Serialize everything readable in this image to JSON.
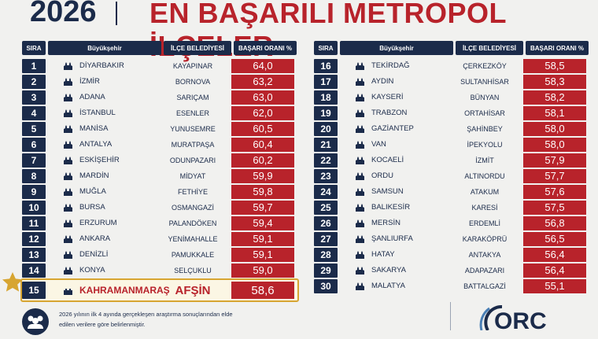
{
  "header": {
    "year": "2026",
    "title": "EN BAŞARILI METROPOL İLÇELER"
  },
  "columns": {
    "rank": "SIRA",
    "city": "Büyükşehir",
    "district": "İLÇE BELEDİYESİ",
    "score": "BAŞARI ORANI %"
  },
  "columns_right": {
    "rank": "SIRA",
    "city": "Büyükşehir",
    "district": "İLÇE BELEDİYESİ",
    "score": "BAŞARI ORANI %"
  },
  "left_rows": [
    {
      "rank": "1",
      "city": "DİYARBAKIR",
      "district": "KAYAPINAR",
      "score": "64,0"
    },
    {
      "rank": "2",
      "city": "İZMİR",
      "district": "BORNOVA",
      "score": "63,2"
    },
    {
      "rank": "3",
      "city": "ADANA",
      "district": "SARIÇAM",
      "score": "63,0"
    },
    {
      "rank": "4",
      "city": "İSTANBUL",
      "district": "ESENLER",
      "score": "62,0"
    },
    {
      "rank": "5",
      "city": "MANİSA",
      "district": "YUNUSEMRE",
      "score": "60,5"
    },
    {
      "rank": "6",
      "city": "ANTALYA",
      "district": "MURATPAŞA",
      "score": "60,4"
    },
    {
      "rank": "7",
      "city": "ESKİŞEHİR",
      "district": "ODUNPAZARI",
      "score": "60,2"
    },
    {
      "rank": "8",
      "city": "MARDİN",
      "district": "MİDYAT",
      "score": "59,9"
    },
    {
      "rank": "9",
      "city": "MUĞLA",
      "district": "FETHİYE",
      "score": "59,8"
    },
    {
      "rank": "10",
      "city": "BURSA",
      "district": "OSMANGAZİ",
      "score": "59,7"
    },
    {
      "rank": "11",
      "city": "ERZURUM",
      "district": "PALANDÖKEN",
      "score": "59,4"
    },
    {
      "rank": "12",
      "city": "ANKARA",
      "district": "YENİMAHALLE",
      "score": "59,1"
    },
    {
      "rank": "13",
      "city": "DENİZLİ",
      "district": "PAMUKKALE",
      "score": "59,1"
    },
    {
      "rank": "14",
      "city": "KONYA",
      "district": "SELÇUKLU",
      "score": "59,0"
    }
  ],
  "highlight": {
    "rank": "15",
    "city": "KAHRAMANMARAŞ",
    "district": "AFŞİN",
    "score": "58,6"
  },
  "right_rows": [
    {
      "rank": "16",
      "city": "TEKİRDAĞ",
      "district": "ÇERKEZKÖY",
      "score": "58,5"
    },
    {
      "rank": "17",
      "city": "AYDIN",
      "district": "SULTANHİSAR",
      "score": "58,3"
    },
    {
      "rank": "18",
      "city": "KAYSERİ",
      "district": "BÜNYAN",
      "score": "58,2"
    },
    {
      "rank": "19",
      "city": "TRABZON",
      "district": "ORTAHİSAR",
      "score": "58,1"
    },
    {
      "rank": "20",
      "city": "GAZİANTEP",
      "district": "ŞAHİNBEY",
      "score": "58,0"
    },
    {
      "rank": "21",
      "city": "VAN",
      "district": "İPEKYOLU",
      "score": "58,0"
    },
    {
      "rank": "22",
      "city": "KOCAELİ",
      "district": "İZMİT",
      "score": "57,9"
    },
    {
      "rank": "23",
      "city": "ORDU",
      "district": "ALTINORDU",
      "score": "57,7"
    },
    {
      "rank": "24",
      "city": "SAMSUN",
      "district": "ATAKUM",
      "score": "57,6"
    },
    {
      "rank": "25",
      "city": "BALIKESİR",
      "district": "KARESİ",
      "score": "57,5"
    },
    {
      "rank": "26",
      "city": "MERSİN",
      "district": "ERDEMLİ",
      "score": "56,8"
    },
    {
      "rank": "27",
      "city": "ŞANLIURFA",
      "district": "KARAKÖPRÜ",
      "score": "56,5"
    },
    {
      "rank": "28",
      "city": "HATAY",
      "district": "ANTAKYA",
      "score": "56,4"
    },
    {
      "rank": "29",
      "city": "SAKARYA",
      "district": "ADAPAZARI",
      "score": "56,4"
    },
    {
      "rank": "30",
      "city": "MALATYA",
      "district": "BATTALGAZİ",
      "score": "55,1"
    }
  ],
  "footer": {
    "note": "2026 yılının ilk 4 ayında gerçekleşen araştırma sonuçlarından elde edilen verilere göre belirlenmiştir.",
    "logo": "ORC"
  },
  "colors": {
    "navy": "#1b2b4a",
    "red": "#b8232b",
    "gold": "#d7a531"
  }
}
